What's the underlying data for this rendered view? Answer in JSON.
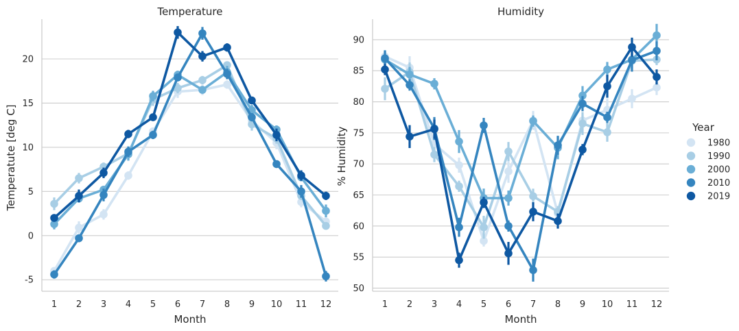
{
  "chart_data": [
    {
      "type": "line",
      "title": "Temperature",
      "xlabel": "Month",
      "ylabel": "Temperatute [deg C]",
      "x": [
        1,
        2,
        3,
        4,
        5,
        6,
        7,
        8,
        9,
        10,
        11,
        12
      ],
      "ylim": [
        -6.3,
        24.5
      ],
      "yticks": [
        -5,
        0,
        5,
        10,
        15,
        20
      ],
      "grid": "horizontal",
      "series": [
        {
          "name": "1980",
          "values": [
            -4.0,
            0.9,
            2.4,
            6.8,
            11.8,
            16.3,
            16.5,
            17.1,
            13.0,
            10.5,
            3.8,
            1.6
          ]
        },
        {
          "name": "1990",
          "values": [
            3.6,
            6.5,
            7.8,
            9.3,
            15.4,
            16.7,
            17.6,
            19.3,
            12.6,
            11.0,
            4.5,
            1.1
          ]
        },
        {
          "name": "2000",
          "values": [
            1.3,
            4.2,
            5.2,
            9.2,
            15.8,
            18.2,
            16.5,
            18.5,
            14.2,
            12.0,
            6.6,
            2.8
          ]
        },
        {
          "name": "2010",
          "values": [
            -4.4,
            -0.3,
            4.6,
            9.5,
            11.4,
            17.9,
            22.9,
            18.3,
            13.4,
            8.1,
            5.0,
            -4.6
          ]
        },
        {
          "name": "2019",
          "values": [
            2.0,
            4.5,
            7.1,
            11.5,
            13.4,
            23.0,
            20.3,
            21.3,
            15.3,
            11.4,
            6.8,
            4.5
          ]
        }
      ]
    },
    {
      "type": "line",
      "title": "Humidity",
      "xlabel": "Month",
      "ylabel": "% Humidity",
      "x": [
        1,
        2,
        3,
        4,
        5,
        6,
        7,
        8,
        9,
        10,
        11,
        12
      ],
      "ylim": [
        49.5,
        93.3
      ],
      "yticks": [
        50,
        55,
        60,
        65,
        70,
        75,
        80,
        85,
        90
      ],
      "grid": "horizontal",
      "series": [
        {
          "name": "1980",
          "values": [
            87.3,
            85.5,
            73.2,
            69.8,
            57.6,
            68.8,
            77.0,
            62.0,
            77.0,
            78.7,
            80.5,
            82.3
          ]
        },
        {
          "name": "1990",
          "values": [
            82.1,
            84.8,
            71.5,
            66.4,
            59.8,
            72.0,
            64.8,
            62.3,
            76.5,
            75.1,
            86.6,
            86.8
          ]
        },
        {
          "name": "2000",
          "values": [
            86.8,
            84.4,
            82.9,
            73.6,
            64.5,
            64.5,
            76.9,
            72.6,
            81.0,
            85.2,
            86.8,
            90.7
          ]
        },
        {
          "name": "2010",
          "values": [
            87.0,
            82.7,
            75.7,
            59.8,
            76.2,
            60.0,
            52.9,
            73.0,
            79.7,
            77.5,
            86.7,
            88.2
          ]
        },
        {
          "name": "2019",
          "values": [
            85.2,
            74.4,
            75.6,
            54.5,
            63.8,
            55.6,
            62.3,
            60.8,
            72.3,
            82.5,
            88.8,
            84.0
          ]
        }
      ]
    }
  ],
  "legend": {
    "title": "Year",
    "placement": "right",
    "entries": [
      "1980",
      "1990",
      "2000",
      "2010",
      "2019"
    ]
  },
  "colors": {
    "1980": "#d3e4f3",
    "1990": "#a8cee5",
    "2000": "#6aaed6",
    "2010": "#3585bf",
    "2019": "#0e58a2",
    "grid": "#cccccc",
    "spine": "#cccccc"
  }
}
